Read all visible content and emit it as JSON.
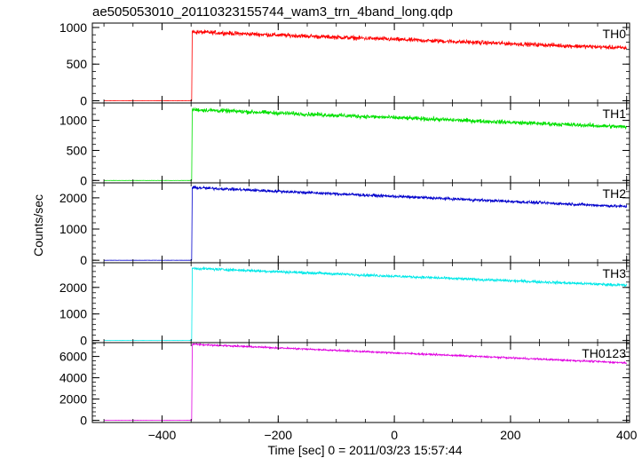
{
  "chart_data": {
    "type": "line",
    "title": "ae505053010_20110323155744_wam3_trn_4band_long.qdp",
    "xlabel": "Time [sec] 0 = 2011/03/23 15:57:44",
    "ylabel": "Counts/sec",
    "xlim": [
      -520,
      405
    ],
    "x_ticks": [
      -400,
      -200,
      0,
      200,
      400
    ],
    "x_tick_labels": [
      "−400",
      "−200",
      "0",
      "200",
      "400"
    ],
    "grid": false,
    "data_start": -500,
    "onset_time": -348,
    "data_end": 400,
    "panels": [
      {
        "name": "TH0",
        "color": "#ff0000",
        "ylim": [
          -30,
          1060
        ],
        "y_ticks": [
          0,
          500,
          1000
        ],
        "pre_level": 0,
        "peak_level": 940,
        "end_level": 720,
        "noise": 25
      },
      {
        "name": "TH1",
        "color": "#00e000",
        "ylim": [
          -40,
          1290
        ],
        "y_ticks": [
          0,
          500,
          1000
        ],
        "pre_level": 0,
        "peak_level": 1180,
        "end_level": 890,
        "noise": 30
      },
      {
        "name": "TH2",
        "color": "#0000cc",
        "ylim": [
          -80,
          2480
        ],
        "y_ticks": [
          0,
          1000,
          2000
        ],
        "pre_level": 0,
        "peak_level": 2330,
        "end_level": 1720,
        "noise": 40
      },
      {
        "name": "TH3",
        "color": "#00e8e8",
        "ylim": [
          -80,
          2930
        ],
        "y_ticks": [
          0,
          1000,
          2000
        ],
        "pre_level": 0,
        "peak_level": 2720,
        "end_level": 2080,
        "noise": 45
      },
      {
        "name": "TH0123",
        "color": "#e000e0",
        "ylim": [
          -200,
          7300
        ],
        "y_ticks": [
          0,
          2000,
          4000,
          6000
        ],
        "pre_level": 0,
        "peak_level": 7150,
        "end_level": 5400,
        "noise": 70
      }
    ]
  }
}
